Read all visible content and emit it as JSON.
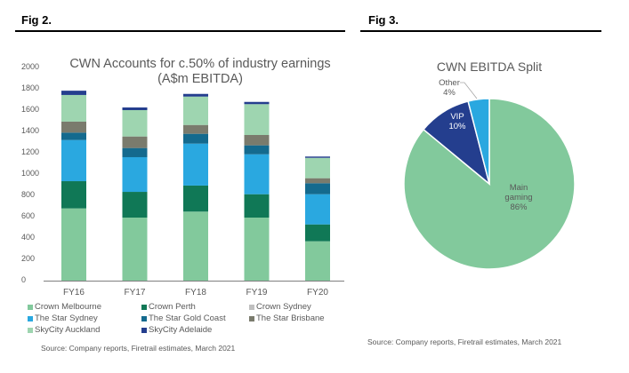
{
  "left": {
    "fig_label": "Fig 2.",
    "source": "Source: Company reports, Firetrail estimates, March 2021"
  },
  "right": {
    "fig_label": "Fig 3.",
    "source": "Source: Company reports, Firetrail estimates, March 2021"
  },
  "chart_data": [
    {
      "type": "bar",
      "stacked": true,
      "title": "CWN Accounts for c.50% of industry earnings",
      "subtitle": "(A$m EBITDA)",
      "xlabel": "",
      "ylabel": "",
      "ylim": [
        0,
        2000
      ],
      "yticks": [
        "0",
        "200",
        "400",
        "600",
        "800",
        "1000",
        "1200",
        "1400",
        "1600",
        "1800",
        "2000"
      ],
      "grid": false,
      "legend_position": "bottom",
      "categories": [
        "FY16",
        "FY17",
        "FY18",
        "FY19",
        "FY20"
      ],
      "series": [
        {
          "name": "Crown Melbourne",
          "color": "#82C99C",
          "values": [
            677,
            591,
            647,
            591,
            369
          ]
        },
        {
          "name": "Crown Perth",
          "color": "#107856",
          "values": [
            255,
            241,
            244,
            219,
            158
          ]
        },
        {
          "name": "Crown Sydney",
          "color": "#BFBFBF",
          "values": [
            0,
            0,
            0,
            0,
            0
          ]
        },
        {
          "name": "The Star Sydney",
          "color": "#2AA8E0",
          "values": [
            386,
            325,
            393,
            374,
            283
          ]
        },
        {
          "name": "The Star Gold Coast",
          "color": "#146A8E",
          "values": [
            69,
            86,
            92,
            84,
            103
          ]
        },
        {
          "name": "The Star Brisbane",
          "color": "#7A7B6D",
          "values": [
            103,
            108,
            83,
            97,
            47
          ]
        },
        {
          "name": "SkyCity Auckland",
          "color": "#9ED5B0",
          "values": [
            250,
            247,
            266,
            289,
            191
          ]
        },
        {
          "name": "SkyCity Adelaide",
          "color": "#243E8E",
          "values": [
            40,
            25,
            25,
            21,
            12
          ]
        }
      ]
    },
    {
      "type": "pie",
      "title": "CWN EBITDA Split",
      "slices": [
        {
          "label": "Main gaming",
          "label_lines": [
            "Main",
            "gaming",
            "86%"
          ],
          "value": 86,
          "color": "#82C99C"
        },
        {
          "label": "VIP",
          "label_lines": [
            "VIP",
            "10%"
          ],
          "value": 10,
          "color": "#243E8E"
        },
        {
          "label": "Other",
          "label_lines": [
            "Other",
            "4%"
          ],
          "value": 4,
          "color": "#2AA8E0"
        }
      ]
    }
  ]
}
